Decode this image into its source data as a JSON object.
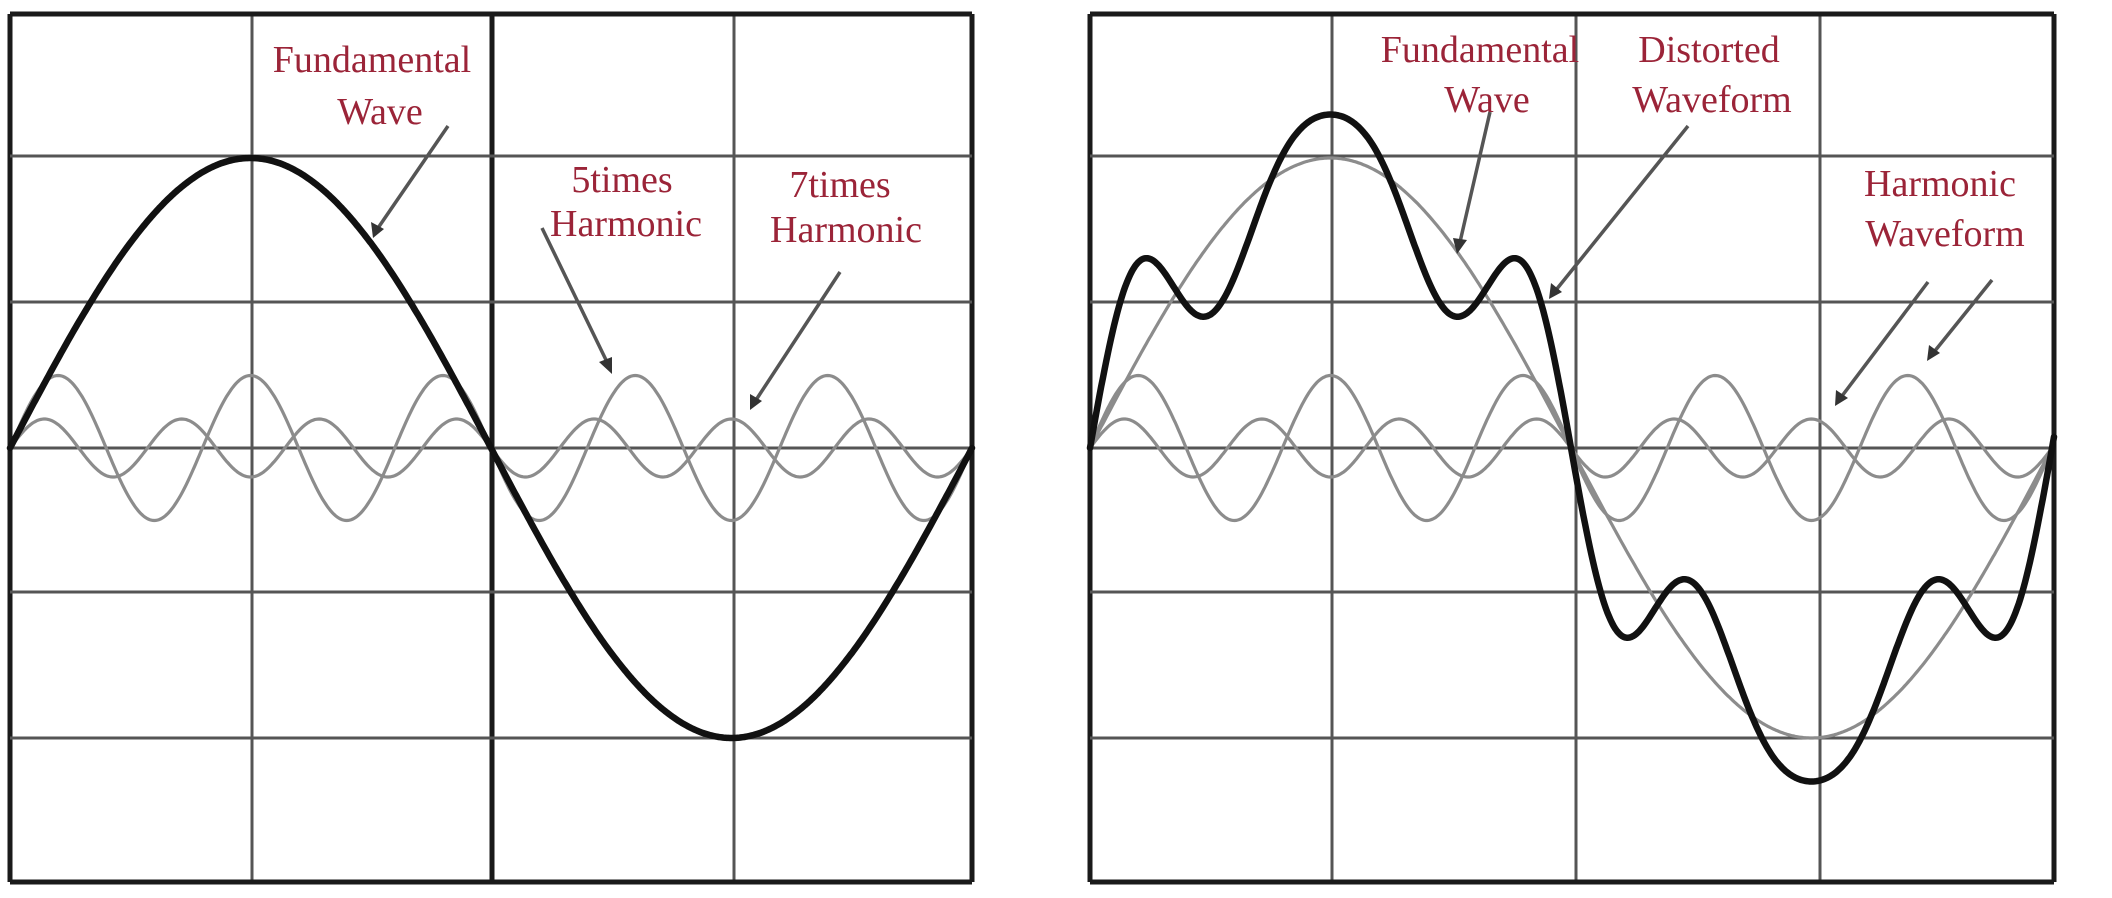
{
  "colors": {
    "label": "#9b2438",
    "wave": "#111111",
    "harmonic": "#8c8c8c",
    "grid": "#555555"
  },
  "left_panel": {
    "labels": {
      "fundamental_line1": "Fundamental",
      "fundamental_line2": "Wave",
      "h5_line1": "5times",
      "h5_line2": "Harmonic",
      "h7_line1": "7times",
      "h7_line2": "Harmonic"
    },
    "waves": [
      {
        "kind": "fundamental",
        "harmonic": 1,
        "amplitude": 1.0
      },
      {
        "kind": "harmonic",
        "harmonic": 5,
        "amplitude": 0.25
      },
      {
        "kind": "harmonic",
        "harmonic": 7,
        "amplitude": 0.1
      }
    ]
  },
  "right_panel": {
    "labels": {
      "fundamental_line1": "Fundamental",
      "fundamental_line2": "Wave",
      "distorted_line1": "Distorted",
      "distorted_line2": "Waveform",
      "harmonic_line1": "Harmonic",
      "harmonic_line2": "Waveform"
    },
    "waves": [
      {
        "kind": "fundamental",
        "harmonic": 1,
        "amplitude": 1.0
      },
      {
        "kind": "harmonic",
        "harmonic": 5,
        "amplitude": 0.25
      },
      {
        "kind": "harmonic",
        "harmonic": 7,
        "amplitude": 0.1
      },
      {
        "kind": "distorted",
        "components": [
          1,
          5,
          7
        ]
      }
    ]
  }
}
